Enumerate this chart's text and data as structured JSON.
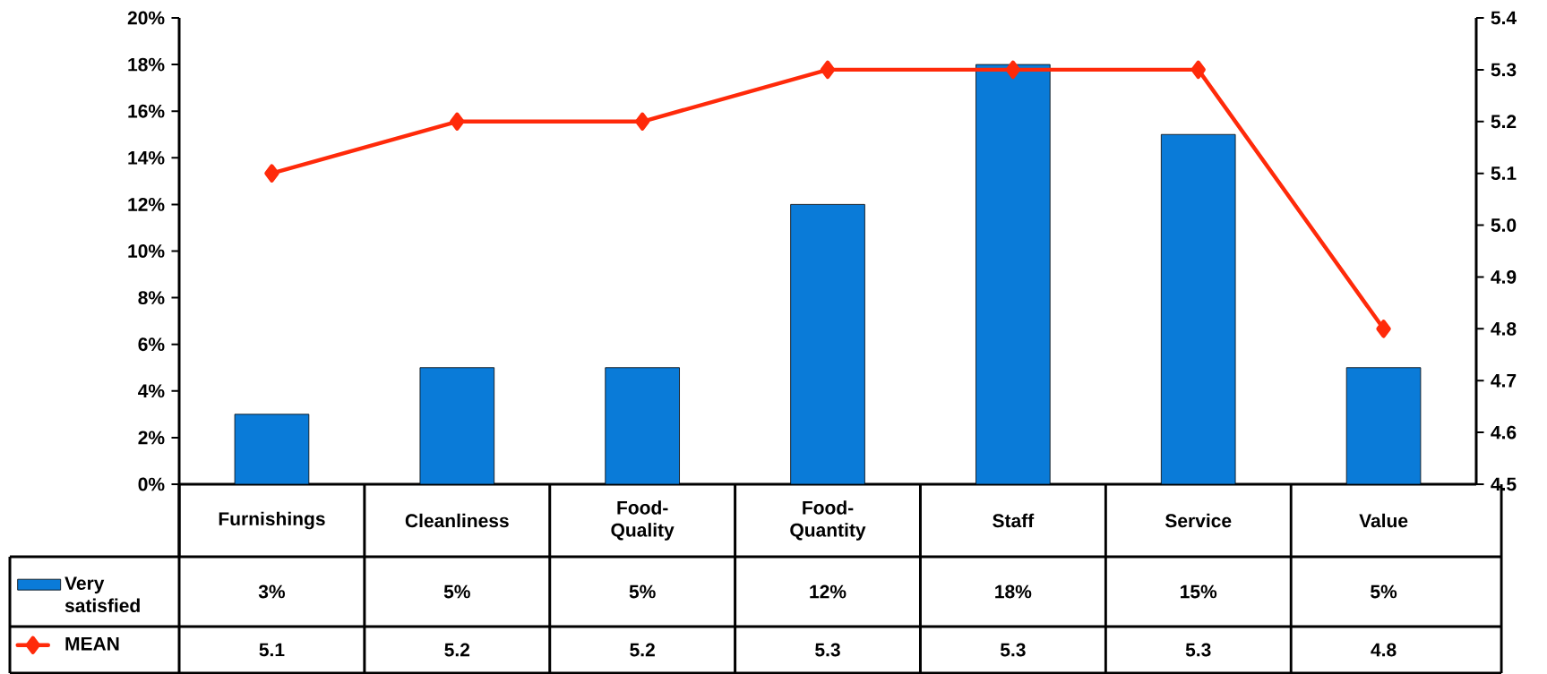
{
  "chart_data": {
    "type": "bar",
    "categories": [
      "Furnishings",
      "Cleanliness",
      "Food-Quality",
      "Food-Quantity",
      "Staff",
      "Service",
      "Value"
    ],
    "series": [
      {
        "name": "Very satisfied",
        "color": "#0a7bd8",
        "values": [
          3,
          5,
          5,
          12,
          18,
          15,
          5
        ],
        "value_labels": [
          "3%",
          "5%",
          "5%",
          "12%",
          "18%",
          "15%",
          "5%"
        ]
      },
      {
        "name": "MEAN",
        "type": "line",
        "axis": "y2",
        "color": "#ff2a0a",
        "marker": "diamond",
        "line_style": "solid",
        "values": [
          5.1,
          5.2,
          5.2,
          5.3,
          5.3,
          5.3,
          4.8
        ],
        "value_labels": [
          "5.1",
          "5.2",
          "5.2",
          "5.3",
          "5.3",
          "5.3",
          "4.8"
        ]
      }
    ],
    "ylim": [
      0,
      20
    ],
    "yticks": [
      {
        "value": 0,
        "label": "0%"
      },
      {
        "value": 2,
        "label": "2%"
      },
      {
        "value": 4,
        "label": "4%"
      },
      {
        "value": 6,
        "label": "6%"
      },
      {
        "value": 8,
        "label": "8%"
      },
      {
        "value": 10,
        "label": "10%"
      },
      {
        "value": 12,
        "label": "12%"
      },
      {
        "value": 14,
        "label": "14%"
      },
      {
        "value": 16,
        "label": "16%"
      },
      {
        "value": 18,
        "label": "18%"
      },
      {
        "value": 20,
        "label": "20%"
      }
    ],
    "y2lim": [
      4.5,
      5.4
    ],
    "y2ticks": [
      4.5,
      4.6,
      4.7,
      4.8,
      4.9,
      {
        "value": 5,
        "label": "5.0"
      },
      5.1,
      5.2,
      5.3,
      5.4
    ],
    "legend": "bottom"
  }
}
